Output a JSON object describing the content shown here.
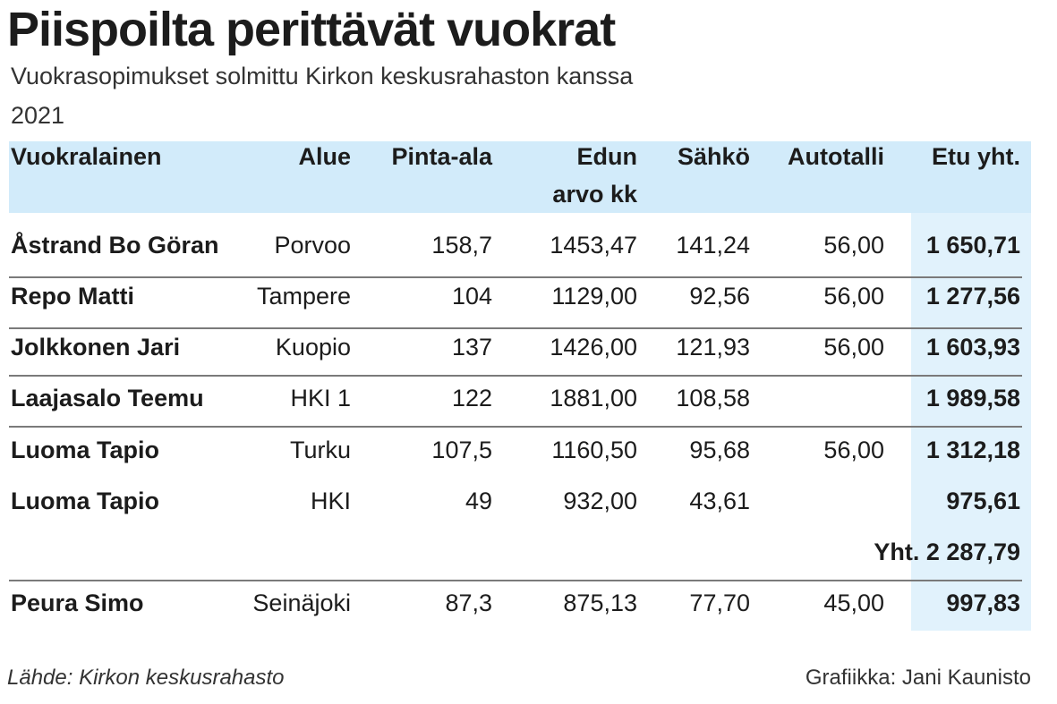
{
  "title": "Piispoilta perittävät vuokrat",
  "subtitle": "Vuokrasopimukset solmittu Kirkon keskusrahaston kanssa",
  "year": "2021",
  "colors": {
    "header_bg": "#d2ebfa",
    "total_col_bg": "#e1f2fc"
  },
  "chart_data": {
    "type": "table",
    "columns": [
      "Vuokralainen",
      "Alue",
      "Pinta-ala",
      "Edun arvo kk",
      "Sähkö",
      "Autotalli",
      "Etu yht."
    ],
    "header_lines": [
      [
        "Vuokralainen"
      ],
      [
        "Alue"
      ],
      [
        "Pinta-ala"
      ],
      [
        "Edun",
        "arvo kk"
      ],
      [
        "Sähkö"
      ],
      [
        "Autotalli"
      ],
      [
        "Etu yht."
      ]
    ],
    "rows": [
      [
        "Åstrand Bo Göran",
        "Porvoo",
        "158,7",
        "1453,47",
        "141,24",
        "56,00",
        "1 650,71"
      ],
      [
        "Repo Matti",
        "Tampere",
        "104",
        "1129,00",
        "92,56",
        "56,00",
        "1 277,56"
      ],
      [
        "Jolkkonen Jari",
        "Kuopio",
        "137",
        "1426,00",
        "121,93",
        "56,00",
        "1 603,93"
      ],
      [
        "Laajasalo Teemu",
        "HKI 1",
        "122",
        "1881,00",
        "108,58",
        "",
        "1 989,58"
      ],
      [
        "Luoma Tapio",
        "Turku",
        "107,5",
        "1160,50",
        "95,68",
        "56,00",
        "1 312,18"
      ],
      [
        "Luoma Tapio",
        "HKI",
        "49",
        "932,00",
        "43,61",
        "",
        "975,61"
      ],
      [
        "",
        "",
        "",
        "",
        "",
        "",
        "Yht. 2 287,79"
      ],
      [
        "Peura Simo",
        "Seinäjoki",
        "87,3",
        "875,13",
        "77,70",
        "45,00",
        "997,83"
      ]
    ]
  },
  "footer": {
    "source": "Lähde: Kirkon keskusrahasto",
    "credit": "Grafiikka: Jani Kaunisto"
  }
}
